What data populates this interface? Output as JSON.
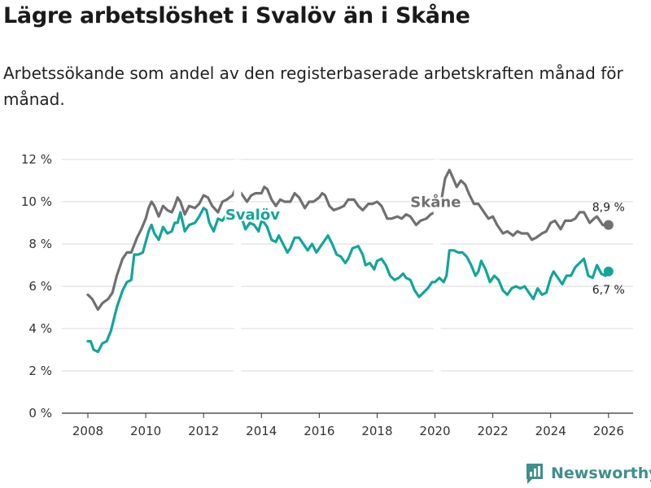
{
  "title": "Lägre arbetslöshet i Svalöv än i Skåne",
  "subtitle": "Arbetssökande som andel av den registerbaserade arbetskraften månad för månad.",
  "brand": "Newsworthy",
  "colors": {
    "svalov": "#13a59a",
    "skane": "#707070",
    "grid": "#d9d9d9",
    "axis": "#333333"
  },
  "chart_data": {
    "type": "line",
    "title": "Lägre arbetslöshet i Svalöv än i Skåne",
    "xlabel": "",
    "ylabel": "",
    "xlim": [
      2007.1,
      2026.85
    ],
    "ylim": [
      0,
      12
    ],
    "yticks": [
      0,
      2,
      4,
      6,
      8,
      10,
      12
    ],
    "ytick_labels": [
      "0 %",
      "2 %",
      "4 %",
      "6 %",
      "8 %",
      "10 %",
      "12 %"
    ],
    "xticks": [
      2008,
      2010,
      2012,
      2014,
      2016,
      2018,
      2020,
      2022,
      2024,
      2026
    ],
    "xtick_labels": [
      "2008",
      "2010",
      "2012",
      "2014",
      "2016",
      "2018",
      "2020",
      "2022",
      "2024",
      "2026"
    ],
    "grid": true,
    "series": [
      {
        "name": "Skåne",
        "label": "Skåne",
        "end_label": "8,9 %",
        "points": [
          [
            2008.0,
            5.6
          ],
          [
            2008.15,
            5.4
          ],
          [
            2008.35,
            4.9
          ],
          [
            2008.5,
            5.2
          ],
          [
            2008.7,
            5.4
          ],
          [
            2008.85,
            5.7
          ],
          [
            2009.0,
            6.5
          ],
          [
            2009.2,
            7.3
          ],
          [
            2009.35,
            7.6
          ],
          [
            2009.5,
            7.6
          ],
          [
            2009.7,
            8.3
          ],
          [
            2009.85,
            8.7
          ],
          [
            2010.0,
            9.2
          ],
          [
            2010.1,
            9.7
          ],
          [
            2010.2,
            10.0
          ],
          [
            2010.3,
            9.8
          ],
          [
            2010.45,
            9.3
          ],
          [
            2010.6,
            9.8
          ],
          [
            2010.75,
            9.6
          ],
          [
            2010.9,
            9.5
          ],
          [
            2011.0,
            9.8
          ],
          [
            2011.1,
            10.2
          ],
          [
            2011.2,
            10.0
          ],
          [
            2011.35,
            9.4
          ],
          [
            2011.5,
            9.8
          ],
          [
            2011.7,
            9.7
          ],
          [
            2011.85,
            9.9
          ],
          [
            2012.0,
            10.3
          ],
          [
            2012.15,
            10.2
          ],
          [
            2012.3,
            9.8
          ],
          [
            2012.5,
            9.5
          ],
          [
            2012.65,
            10.0
          ],
          [
            2012.8,
            10.1
          ],
          [
            2013.0,
            10.3
          ],
          [
            2013.1,
            10.6
          ],
          [
            2013.3,
            10.4
          ],
          [
            2013.5,
            10.0
          ],
          [
            2013.65,
            10.3
          ],
          [
            2013.8,
            10.4
          ],
          [
            2014.0,
            10.4
          ],
          [
            2014.1,
            10.7
          ],
          [
            2014.2,
            10.6
          ],
          [
            2014.35,
            10.1
          ],
          [
            2014.5,
            9.8
          ],
          [
            2014.65,
            10.1
          ],
          [
            2014.8,
            10.0
          ],
          [
            2015.0,
            10.0
          ],
          [
            2015.15,
            10.4
          ],
          [
            2015.3,
            10.2
          ],
          [
            2015.5,
            9.7
          ],
          [
            2015.65,
            10.0
          ],
          [
            2015.8,
            10.0
          ],
          [
            2016.0,
            10.2
          ],
          [
            2016.1,
            10.4
          ],
          [
            2016.2,
            10.3
          ],
          [
            2016.35,
            9.8
          ],
          [
            2016.5,
            9.6
          ],
          [
            2016.7,
            9.7
          ],
          [
            2016.85,
            9.8
          ],
          [
            2017.0,
            10.1
          ],
          [
            2017.2,
            10.1
          ],
          [
            2017.35,
            9.8
          ],
          [
            2017.5,
            9.6
          ],
          [
            2017.7,
            9.9
          ],
          [
            2017.85,
            9.9
          ],
          [
            2018.0,
            10.0
          ],
          [
            2018.15,
            9.8
          ],
          [
            2018.35,
            9.2
          ],
          [
            2018.5,
            9.2
          ],
          [
            2018.7,
            9.3
          ],
          [
            2018.85,
            9.2
          ],
          [
            2019.0,
            9.4
          ],
          [
            2019.15,
            9.3
          ],
          [
            2019.35,
            8.9
          ],
          [
            2019.5,
            9.1
          ],
          [
            2019.7,
            9.2
          ],
          [
            2019.85,
            9.4
          ],
          [
            2020.0,
            9.5
          ],
          [
            2020.15,
            9.7
          ],
          [
            2020.25,
            10.3
          ],
          [
            2020.35,
            11.1
          ],
          [
            2020.5,
            11.5
          ],
          [
            2020.6,
            11.2
          ],
          [
            2020.75,
            10.7
          ],
          [
            2020.9,
            11.0
          ],
          [
            2021.05,
            10.8
          ],
          [
            2021.2,
            10.3
          ],
          [
            2021.35,
            9.9
          ],
          [
            2021.5,
            9.9
          ],
          [
            2021.7,
            9.5
          ],
          [
            2021.85,
            9.2
          ],
          [
            2022.0,
            9.3
          ],
          [
            2022.15,
            8.9
          ],
          [
            2022.35,
            8.5
          ],
          [
            2022.5,
            8.6
          ],
          [
            2022.7,
            8.4
          ],
          [
            2022.85,
            8.6
          ],
          [
            2023.0,
            8.5
          ],
          [
            2023.2,
            8.5
          ],
          [
            2023.35,
            8.2
          ],
          [
            2023.5,
            8.3
          ],
          [
            2023.7,
            8.5
          ],
          [
            2023.85,
            8.6
          ],
          [
            2024.0,
            9.0
          ],
          [
            2024.15,
            9.1
          ],
          [
            2024.35,
            8.7
          ],
          [
            2024.5,
            9.1
          ],
          [
            2024.7,
            9.1
          ],
          [
            2024.85,
            9.2
          ],
          [
            2025.0,
            9.5
          ],
          [
            2025.15,
            9.5
          ],
          [
            2025.35,
            9.0
          ],
          [
            2025.5,
            9.2
          ],
          [
            2025.6,
            9.3
          ],
          [
            2025.8,
            8.9
          ],
          [
            2026.0,
            8.9
          ]
        ]
      },
      {
        "name": "Svalöv",
        "label": "Svalöv",
        "end_label": "6,7 %",
        "points": [
          [
            2008.0,
            3.4
          ],
          [
            2008.1,
            3.4
          ],
          [
            2008.2,
            3.0
          ],
          [
            2008.35,
            2.9
          ],
          [
            2008.5,
            3.3
          ],
          [
            2008.65,
            3.4
          ],
          [
            2008.8,
            3.9
          ],
          [
            2009.0,
            5.0
          ],
          [
            2009.2,
            5.8
          ],
          [
            2009.35,
            6.2
          ],
          [
            2009.5,
            6.3
          ],
          [
            2009.6,
            7.5
          ],
          [
            2009.75,
            7.5
          ],
          [
            2009.9,
            7.6
          ],
          [
            2010.0,
            8.1
          ],
          [
            2010.1,
            8.6
          ],
          [
            2010.2,
            8.9
          ],
          [
            2010.3,
            8.5
          ],
          [
            2010.45,
            8.2
          ],
          [
            2010.6,
            8.8
          ],
          [
            2010.75,
            8.5
          ],
          [
            2010.9,
            8.6
          ],
          [
            2011.0,
            9.0
          ],
          [
            2011.1,
            9.0
          ],
          [
            2011.2,
            9.5
          ],
          [
            2011.35,
            8.6
          ],
          [
            2011.5,
            8.9
          ],
          [
            2011.7,
            9.0
          ],
          [
            2011.85,
            9.3
          ],
          [
            2012.0,
            9.7
          ],
          [
            2012.1,
            9.6
          ],
          [
            2012.2,
            9.0
          ],
          [
            2012.35,
            8.6
          ],
          [
            2012.5,
            9.2
          ],
          [
            2012.65,
            9.1
          ],
          [
            2012.8,
            9.4
          ],
          [
            2013.0,
            9.5
          ],
          [
            2013.1,
            9.7
          ],
          [
            2013.3,
            9.3
          ],
          [
            2013.45,
            8.7
          ],
          [
            2013.6,
            9.0
          ],
          [
            2013.75,
            8.9
          ],
          [
            2013.9,
            8.6
          ],
          [
            2014.0,
            9.1
          ],
          [
            2014.1,
            9.0
          ],
          [
            2014.2,
            8.8
          ],
          [
            2014.35,
            8.2
          ],
          [
            2014.5,
            8.1
          ],
          [
            2014.6,
            8.4
          ],
          [
            2014.75,
            8.0
          ],
          [
            2014.9,
            7.6
          ],
          [
            2015.0,
            7.8
          ],
          [
            2015.15,
            8.3
          ],
          [
            2015.3,
            8.3
          ],
          [
            2015.45,
            8.0
          ],
          [
            2015.6,
            7.7
          ],
          [
            2015.75,
            8.0
          ],
          [
            2015.9,
            7.6
          ],
          [
            2016.0,
            7.8
          ],
          [
            2016.15,
            8.1
          ],
          [
            2016.3,
            8.4
          ],
          [
            2016.45,
            8.0
          ],
          [
            2016.6,
            7.5
          ],
          [
            2016.75,
            7.4
          ],
          [
            2016.9,
            7.1
          ],
          [
            2017.0,
            7.3
          ],
          [
            2017.15,
            7.8
          ],
          [
            2017.35,
            7.9
          ],
          [
            2017.5,
            7.5
          ],
          [
            2017.6,
            7.0
          ],
          [
            2017.75,
            7.1
          ],
          [
            2017.9,
            6.8
          ],
          [
            2018.0,
            7.2
          ],
          [
            2018.15,
            7.3
          ],
          [
            2018.3,
            7.0
          ],
          [
            2018.45,
            6.5
          ],
          [
            2018.6,
            6.3
          ],
          [
            2018.75,
            6.4
          ],
          [
            2018.9,
            6.6
          ],
          [
            2019.0,
            6.4
          ],
          [
            2019.15,
            6.3
          ],
          [
            2019.3,
            5.8
          ],
          [
            2019.45,
            5.5
          ],
          [
            2019.6,
            5.7
          ],
          [
            2019.75,
            5.9
          ],
          [
            2019.9,
            6.2
          ],
          [
            2020.0,
            6.2
          ],
          [
            2020.15,
            6.4
          ],
          [
            2020.3,
            6.2
          ],
          [
            2020.4,
            6.5
          ],
          [
            2020.5,
            7.7
          ],
          [
            2020.65,
            7.7
          ],
          [
            2020.8,
            7.6
          ],
          [
            2020.95,
            7.6
          ],
          [
            2021.1,
            7.4
          ],
          [
            2021.25,
            7.0
          ],
          [
            2021.4,
            6.5
          ],
          [
            2021.5,
            6.7
          ],
          [
            2021.6,
            7.2
          ],
          [
            2021.75,
            6.8
          ],
          [
            2021.9,
            6.2
          ],
          [
            2022.05,
            6.5
          ],
          [
            2022.2,
            6.3
          ],
          [
            2022.35,
            5.8
          ],
          [
            2022.5,
            5.6
          ],
          [
            2022.65,
            5.9
          ],
          [
            2022.8,
            6.0
          ],
          [
            2022.95,
            5.9
          ],
          [
            2023.1,
            6.0
          ],
          [
            2023.25,
            5.7
          ],
          [
            2023.4,
            5.4
          ],
          [
            2023.55,
            5.9
          ],
          [
            2023.7,
            5.6
          ],
          [
            2023.85,
            5.7
          ],
          [
            2024.0,
            6.4
          ],
          [
            2024.1,
            6.7
          ],
          [
            2024.25,
            6.4
          ],
          [
            2024.4,
            6.1
          ],
          [
            2024.55,
            6.5
          ],
          [
            2024.7,
            6.5
          ],
          [
            2024.85,
            6.9
          ],
          [
            2025.0,
            7.1
          ],
          [
            2025.15,
            7.3
          ],
          [
            2025.3,
            6.5
          ],
          [
            2025.45,
            6.4
          ],
          [
            2025.6,
            7.0
          ],
          [
            2025.75,
            6.6
          ],
          [
            2025.9,
            6.5
          ],
          [
            2026.0,
            6.7
          ]
        ]
      }
    ]
  }
}
